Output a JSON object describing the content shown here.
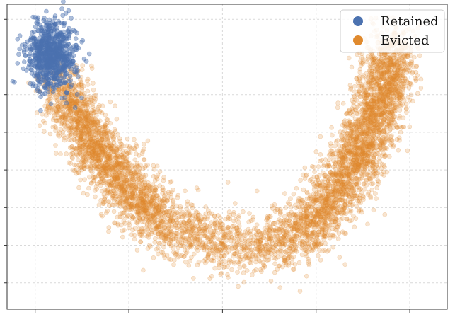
{
  "chart_data": {
    "type": "scatter",
    "title": "",
    "xlabel": "",
    "ylabel": "",
    "xlim": [
      -0.3,
      4.4
    ],
    "ylim": [
      -0.7,
      7.4
    ],
    "grid": true,
    "legend_position": "top-right",
    "tick_labels_visible": false,
    "series": [
      {
        "name": "Retained",
        "color": "#4c72b0",
        "cluster_center": [
          0.18,
          6.05
        ],
        "cluster_spread": [
          0.13,
          0.45
        ],
        "approx_points": 800
      },
      {
        "name": "Evicted",
        "color": "#e08a2e",
        "shape": "u-shaped arc",
        "arc_path_x": [
          0.25,
          0.45,
          0.7,
          1.0,
          1.4,
          1.9,
          2.4,
          2.8,
          3.1,
          3.4,
          3.6,
          3.75,
          3.85
        ],
        "arc_path_y": [
          5.2,
          4.5,
          3.4,
          2.5,
          1.6,
          1.1,
          1.0,
          1.3,
          2.0,
          3.1,
          4.2,
          5.4,
          6.3
        ],
        "arc_spread": 0.25,
        "approx_points": 5600
      }
    ]
  },
  "legend": {
    "items": [
      {
        "label": "Retained",
        "color": "#4c72b0"
      },
      {
        "label": "Evicted",
        "color": "#e08a2e"
      }
    ]
  }
}
